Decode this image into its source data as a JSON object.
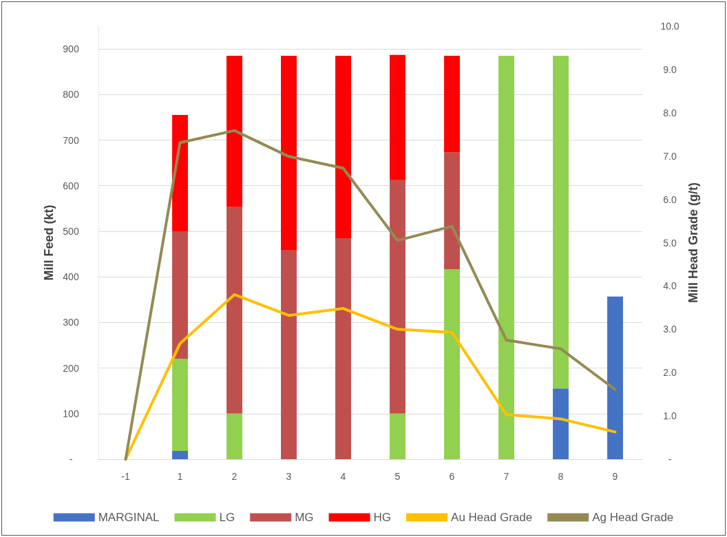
{
  "chart_data": {
    "type": "bar",
    "stacked": true,
    "ylabel": "Mill Feed (kt)",
    "y2label": "Mill Head Grade (g/t)",
    "categories": [
      "-1",
      "1",
      "2",
      "3",
      "4",
      "5",
      "6",
      "7",
      "8",
      "9"
    ],
    "series": [
      {
        "name": "MARGINAL",
        "color": "#4472c4",
        "values": [
          0,
          18,
          0,
          0,
          0,
          0,
          0,
          0,
          155,
          357
        ]
      },
      {
        "name": "LG",
        "color": "#92d050",
        "values": [
          0,
          202,
          100,
          0,
          0,
          100,
          417,
          885,
          730,
          0
        ]
      },
      {
        "name": "MG",
        "color": "#c0504d",
        "values": [
          0,
          280,
          453,
          458,
          485,
          512,
          256,
          0,
          0,
          0
        ]
      },
      {
        "name": "HG",
        "color": "#ff0000",
        "values": [
          0,
          255,
          332,
          427,
          400,
          275,
          212,
          0,
          0,
          0
        ]
      },
      {
        "name": "Au Head Grade",
        "type": "line",
        "axis": "y2",
        "color": "#ffc000",
        "values": [
          0,
          2.67,
          3.8,
          3.32,
          3.48,
          3.0,
          2.93,
          1.03,
          0.93,
          0.63
        ]
      },
      {
        "name": "Ag Head Grade",
        "type": "line",
        "axis": "y2",
        "color": "#948a54",
        "values": [
          0,
          7.31,
          7.59,
          6.99,
          6.72,
          5.05,
          5.38,
          2.75,
          2.55,
          1.61
        ]
      }
    ],
    "ylim": [
      0,
      950
    ],
    "yticks": [
      {
        "value": 0,
        "label": "-"
      },
      100,
      200,
      300,
      400,
      500,
      600,
      700,
      800,
      900
    ],
    "y2lim": [
      0,
      10
    ],
    "y2ticks": [
      {
        "value": 0,
        "label": "-"
      },
      {
        "value": 1,
        "label": "1.0"
      },
      {
        "value": 2,
        "label": "2.0"
      },
      {
        "value": 3,
        "label": "3.0"
      },
      {
        "value": 4,
        "label": "4.0"
      },
      {
        "value": 5,
        "label": "5.0"
      },
      {
        "value": 6,
        "label": "6.0"
      },
      {
        "value": 7,
        "label": "7.0"
      },
      {
        "value": 8,
        "label": "8.0"
      },
      {
        "value": 9,
        "label": "9.0"
      },
      {
        "value": 10,
        "label": "10.0"
      }
    ],
    "grid": "y",
    "legend": "bottom",
    "marker": "none"
  }
}
